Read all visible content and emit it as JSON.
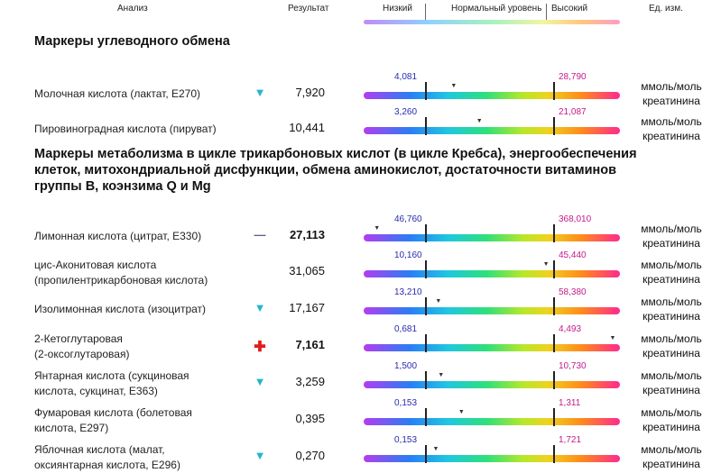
{
  "header": {
    "analysis": "Анализ",
    "result": "Результат",
    "low": "Низкий",
    "normal": "Нормальный уровень",
    "high": "Высокий",
    "unit": "Ед. изм."
  },
  "sections": [
    {
      "title": "Маркеры углеводного обмена"
    },
    {
      "title_lines": [
        "Маркеры метаболизма в цикле трикарбоновых кислот (в цикле Кребса), энергообеспечения",
        "клеток, митохондриальной дисфункции, обмена аминокислот, достаточности витаминов",
        "группы В, коэнзима Q и Mg"
      ]
    }
  ],
  "unit_line1": "ммоль/моль",
  "unit_line2": "креатинина",
  "rows": [
    {
      "name": [
        "Молочная кислота  (лактат, Е270)"
      ],
      "flag": "▼",
      "flag_type": "down",
      "value": "7,920",
      "bold": false,
      "low": "4,081",
      "high": "28,790",
      "position": 0.35
    },
    {
      "name": [
        "Пировиноградная кислота (пируват)"
      ],
      "flag": "",
      "flag_type": "",
      "value": "10,441",
      "bold": false,
      "low": "3,260",
      "high": "21,087",
      "position": 0.45
    },
    {
      "name": [
        "Лимонная кислота (цитрат, Е330)"
      ],
      "flag": "—",
      "flag_type": "dash",
      "value": "27,113",
      "bold": true,
      "low": "46,760",
      "high": "368,010",
      "position": 0.05
    },
    {
      "name": [
        "цис-Аконитовая кислота",
        "(пропилентрикарбоновая кислота)"
      ],
      "flag": "",
      "flag_type": "",
      "value": "31,065",
      "bold": false,
      "low": "10,160",
      "high": "45,440",
      "position": 0.71
    },
    {
      "name": [
        "Изолимонная кислота (изоцитрат)"
      ],
      "flag": "▼",
      "flag_type": "down",
      "value": "17,167",
      "bold": false,
      "low": "13,210",
      "high": "58,380",
      "position": 0.29
    },
    {
      "name": [
        "2-Кетоглутаровая",
        "(2-оксоглутаровая)"
      ],
      "flag": "✚",
      "flag_type": "plus",
      "value": "7,161",
      "bold": true,
      "low": "0,681",
      "high": "4,493",
      "position": 0.97
    },
    {
      "name": [
        "Янтарная кислота (сукциновая",
        "кислота, сукцинат, Е363)"
      ],
      "flag": "▼",
      "flag_type": "down",
      "value": "3,259",
      "bold": false,
      "low": "1,500",
      "high": "10,730",
      "position": 0.3
    },
    {
      "name": [
        "Фумаровая кислота (болетовая",
        "кислота, Е297)"
      ],
      "flag": "",
      "flag_type": "",
      "value": "0,395",
      "bold": false,
      "low": "0,153",
      "high": "1,311",
      "position": 0.38
    },
    {
      "name": [
        "Яблочная кислота (малат,",
        "оксиянтарная кислота, Е296)"
      ],
      "flag": "▼",
      "flag_type": "down",
      "value": "0,270",
      "bold": false,
      "low": "0,153",
      "high": "1,721",
      "position": 0.28
    }
  ]
}
